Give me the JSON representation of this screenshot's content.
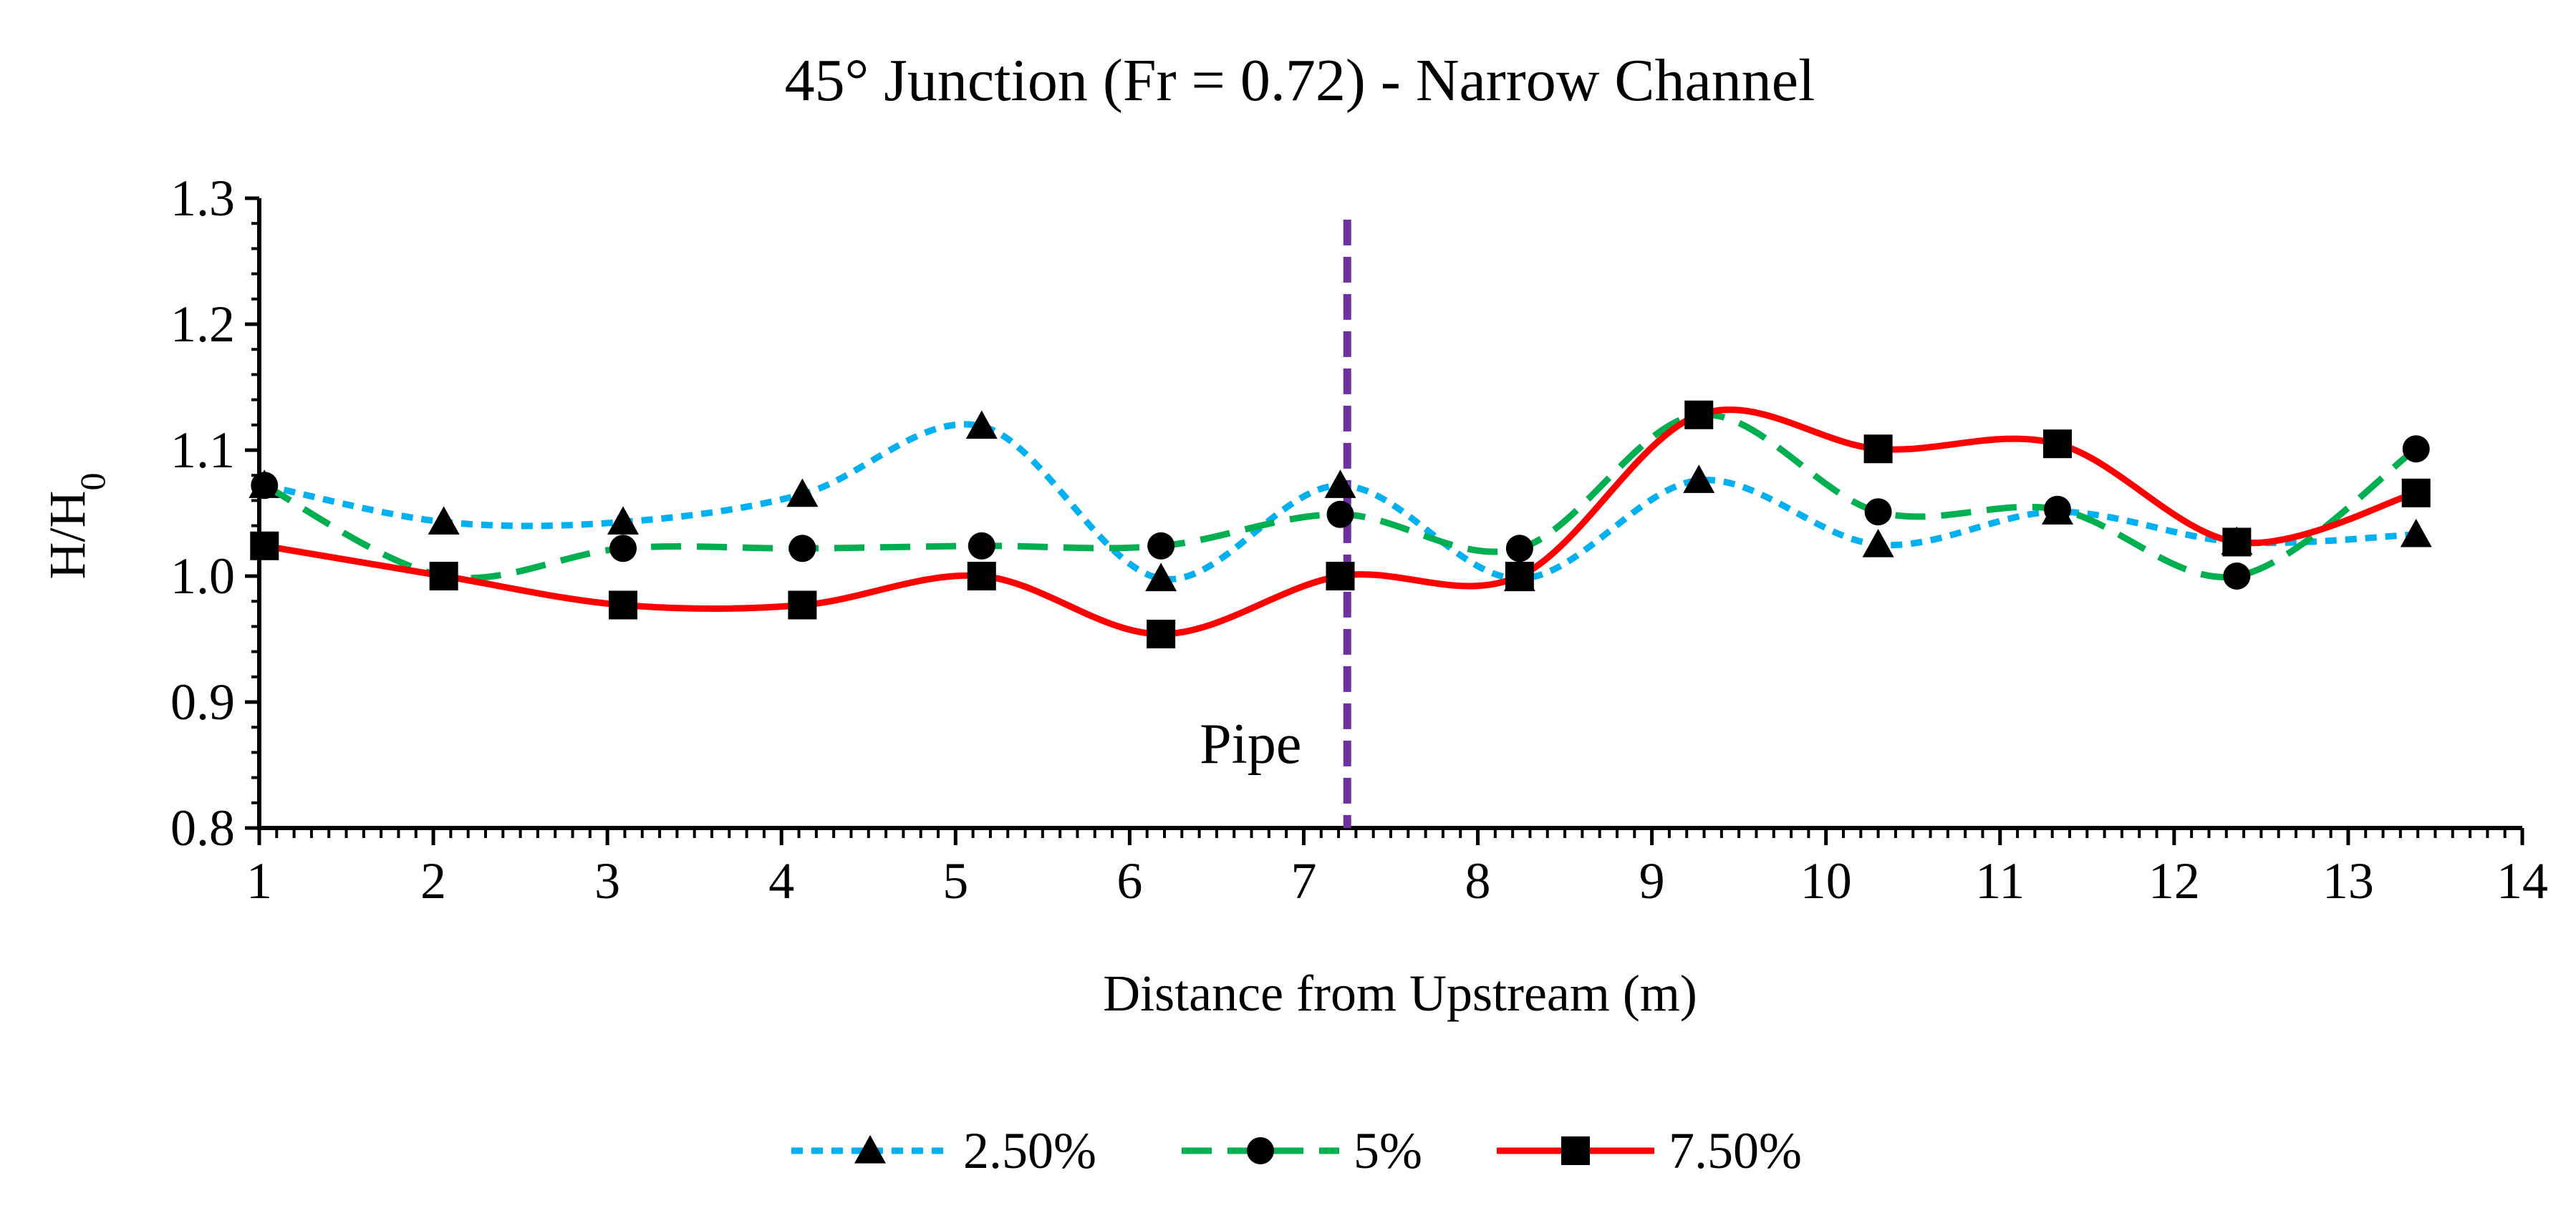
{
  "chart_data": {
    "type": "line",
    "title": "45° Junction (Fr = 0.72) - Narrow Channel",
    "xlabel": "Distance from Upstream (m)",
    "ylabel_main": "H/H",
    "ylabel_sub": "0",
    "xlim": [
      1,
      14
    ],
    "ylim": [
      0.8,
      1.3
    ],
    "xticks": [
      1,
      2,
      3,
      4,
      5,
      6,
      7,
      8,
      9,
      10,
      11,
      12,
      13,
      14
    ],
    "yticks": [
      "0.8",
      "0.9",
      "1.0",
      "1.1",
      "1.2",
      "1.3"
    ],
    "grid": false,
    "legend_position": "bottom",
    "annotation": {
      "label": "Pipe",
      "x": 7.25
    },
    "series": [
      {
        "name": "2.50%",
        "color": "#00B0F0",
        "line_style": "dotted",
        "marker": "triangle",
        "x": [
          1.03,
          2.06,
          3.09,
          4.12,
          5.15,
          6.18,
          7.21,
          8.24,
          9.27,
          10.3,
          11.33,
          12.36,
          13.39
        ],
        "values": [
          1.072,
          1.043,
          1.043,
          1.065,
          1.119,
          0.998,
          1.072,
          0.998,
          1.076,
          1.025,
          1.051,
          1.027,
          1.033
        ]
      },
      {
        "name": "5%",
        "color": "#00B050",
        "line_style": "dashed",
        "marker": "circle",
        "x": [
          1.03,
          2.06,
          3.09,
          4.12,
          5.15,
          6.18,
          7.21,
          8.24,
          9.27,
          10.3,
          11.33,
          12.36,
          13.39
        ],
        "values": [
          1.072,
          1.0,
          1.022,
          1.022,
          1.024,
          1.024,
          1.049,
          1.022,
          1.128,
          1.051,
          1.053,
          1.0,
          1.101
        ]
      },
      {
        "name": "7.50%",
        "color": "#FF0000",
        "line_style": "solid",
        "marker": "square",
        "x": [
          1.03,
          2.06,
          3.09,
          4.12,
          5.15,
          6.18,
          7.21,
          8.24,
          9.27,
          10.3,
          11.33,
          12.36,
          13.39
        ],
        "values": [
          1.024,
          1.0,
          0.977,
          0.977,
          1.0,
          0.954,
          1.0,
          1.0,
          1.128,
          1.101,
          1.105,
          1.027,
          1.066
        ]
      }
    ]
  }
}
